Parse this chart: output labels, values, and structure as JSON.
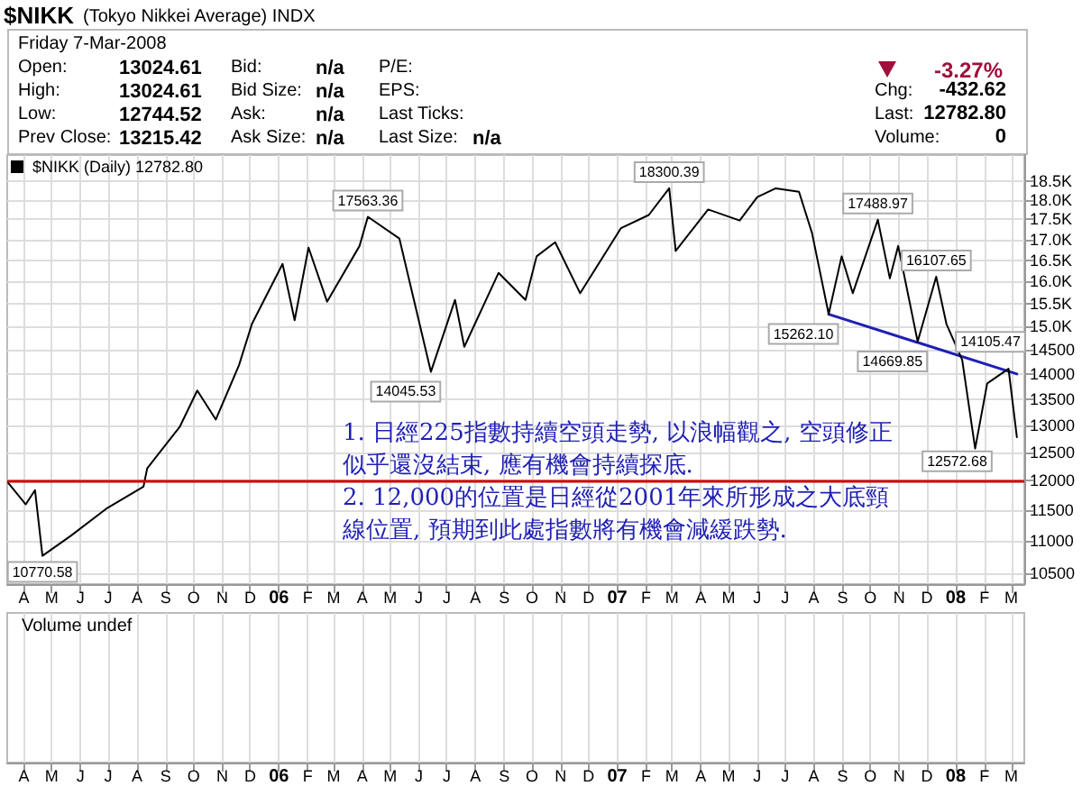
{
  "chart_data": {
    "type": "line",
    "title": "$NIKK",
    "subtitle": "(Tokyo Nikkei Average) INDX",
    "annotations": [
      "Friday  7-Mar-2008",
      "Open:",
      "13024.61",
      "Bid:",
      "n/a",
      "P/E:",
      "High:",
      "13024.61",
      "Bid Size:",
      "n/a",
      "EPS:",
      "Low:",
      "12744.52",
      "Ask:",
      "n/a",
      "Last Ticks:",
      "Prev Close:",
      "13215.42",
      "Ask Size:",
      "n/a",
      "Last Size:",
      "n/a",
      "-3.27%",
      "Chg:",
      "-432.62",
      "Last:",
      "12782.80",
      "Volume:",
      "0",
      "1. 日經225指數持續空頭走勢, 以浪幅觀之, 空頭修正似乎還沒結束, 應有機會持續探底.",
      "2. 12,000的位置是日經從2001年來所形成之大底頸線位置, 預期到此處指數將有機會減緩跌勢.",
      "Volume undef"
    ],
    "series": [
      {
        "name": "$NIKK (Daily) 12782.80",
        "color": "#000000",
        "x": [
          "2005-03-15",
          "2005-04-03",
          "2005-04-13",
          "2005-04-21",
          "2005-05-22",
          "2005-06-30",
          "2005-08-08",
          "2005-08-12",
          "2005-09-16",
          "2005-10-05",
          "2005-10-25",
          "2005-11-19",
          "2005-12-03",
          "2006-01-05",
          "2006-01-18",
          "2006-02-02",
          "2006-02-22",
          "2006-03-29",
          "2006-04-07",
          "2006-05-11",
          "2006-06-14",
          "2006-07-10",
          "2006-07-20",
          "2006-08-26",
          "2006-09-24",
          "2006-10-06",
          "2006-10-26",
          "2006-11-22",
          "2007-01-05",
          "2007-02-04",
          "2007-02-26",
          "2007-03-05",
          "2007-04-09",
          "2007-05-13",
          "2007-06-01",
          "2007-06-21",
          "2007-07-16",
          "2007-07-30",
          "2007-08-17",
          "2007-08-31",
          "2007-09-12",
          "2007-10-09",
          "2007-10-22",
          "2007-10-31",
          "2007-11-21",
          "2007-12-11",
          "2007-12-22",
          "2008-01-08",
          "2008-01-22",
          "2008-02-04",
          "2008-02-27",
          "2008-03-07"
        ],
        "values": [
          11965,
          11600,
          11840,
          10770.58,
          11090,
          11540,
          11900,
          12220,
          12970,
          13670,
          13110,
          14180,
          15050,
          16410,
          15130,
          16800,
          15540,
          16840,
          17563.36,
          17020,
          14045.53,
          15580,
          14560,
          16200,
          15580,
          16590,
          16930,
          15730,
          17280,
          17610,
          18300.39,
          16720,
          17750,
          17470,
          18070,
          18300,
          18210,
          17160,
          15262.1,
          16590,
          15730,
          17488.97,
          16070,
          16840,
          14669.85,
          16107.65,
          15050,
          14290,
          12572.68,
          13810,
          14105.47,
          12782.8
        ],
        "value_labels": [
          null,
          null,
          null,
          "10770.58",
          null,
          null,
          null,
          null,
          null,
          null,
          null,
          null,
          null,
          null,
          null,
          null,
          null,
          null,
          "17563.36",
          null,
          "14045.53",
          null,
          null,
          null,
          null,
          null,
          null,
          null,
          null,
          null,
          "18300.39",
          null,
          null,
          null,
          null,
          null,
          null,
          null,
          "15262.10",
          null,
          null,
          "17488.97",
          null,
          null,
          "14669.85",
          "16107.65",
          null,
          null,
          "12572.68",
          null,
          "14105.47",
          null
        ]
      },
      {
        "type": "line",
        "color": "#1f1fb4",
        "x": [
          "2007-08-17",
          "2008-03-07"
        ],
        "values": [
          15260,
          14000
        ]
      }
    ],
    "ref_lines": [
      {
        "axis": "y",
        "value": 12000,
        "color": "#cc0000"
      }
    ],
    "log": "y",
    "grid": true,
    "legend": "top left",
    "xlim": [
      "2005-03-14",
      "2008-03-15"
    ],
    "xticks": [
      {
        "value": "2005-04",
        "label": "A"
      },
      {
        "value": "2005-05",
        "label": "M"
      },
      {
        "value": "2005-06",
        "label": "J"
      },
      {
        "value": "2005-07",
        "label": "J"
      },
      {
        "value": "2005-08",
        "label": "A"
      },
      {
        "value": "2005-09",
        "label": "S"
      },
      {
        "value": "2005-10",
        "label": "O"
      },
      {
        "value": "2005-11",
        "label": "N"
      },
      {
        "value": "2005-12",
        "label": "D"
      },
      {
        "value": "2006-01",
        "label": "06"
      },
      {
        "value": "2006-02",
        "label": "F"
      },
      {
        "value": "2006-03",
        "label": "M"
      },
      {
        "value": "2006-04",
        "label": "A"
      },
      {
        "value": "2006-05",
        "label": "M"
      },
      {
        "value": "2006-06",
        "label": "J"
      },
      {
        "value": "2006-07",
        "label": "J"
      },
      {
        "value": "2006-08",
        "label": "A"
      },
      {
        "value": "2006-09",
        "label": "S"
      },
      {
        "value": "2006-10",
        "label": "O"
      },
      {
        "value": "2006-11",
        "label": "N"
      },
      {
        "value": "2006-12",
        "label": "D"
      },
      {
        "value": "2007-01",
        "label": "07"
      },
      {
        "value": "2007-02",
        "label": "F"
      },
      {
        "value": "2007-03",
        "label": "M"
      },
      {
        "value": "2007-04",
        "label": "A"
      },
      {
        "value": "2007-05",
        "label": "M"
      },
      {
        "value": "2007-06",
        "label": "J"
      },
      {
        "value": "2007-07",
        "label": "J"
      },
      {
        "value": "2007-08",
        "label": "A"
      },
      {
        "value": "2007-09",
        "label": "S"
      },
      {
        "value": "2007-10",
        "label": "O"
      },
      {
        "value": "2007-11",
        "label": "N"
      },
      {
        "value": "2007-12",
        "label": "D"
      },
      {
        "value": "2008-01",
        "label": "08"
      },
      {
        "value": "2008-02",
        "label": "F"
      },
      {
        "value": "2008-03",
        "label": "M"
      }
    ],
    "ylim": [
      10340,
      19200
    ],
    "yticks": [
      10500,
      11000,
      11500,
      12000,
      12500,
      13000,
      13500,
      14000,
      14500,
      {
        "value": 15000,
        "label": "15.0K"
      },
      {
        "value": 15500,
        "label": "15.5K"
      },
      {
        "value": 16000,
        "label": "16.0K"
      },
      {
        "value": 16500,
        "label": "16.5K"
      },
      {
        "value": 17000,
        "label": "17.0K"
      },
      {
        "value": 17500,
        "label": "17.5K"
      },
      {
        "value": 18000,
        "label": "18.0K"
      },
      {
        "value": 18500,
        "label": "18.5K"
      }
    ]
  }
}
